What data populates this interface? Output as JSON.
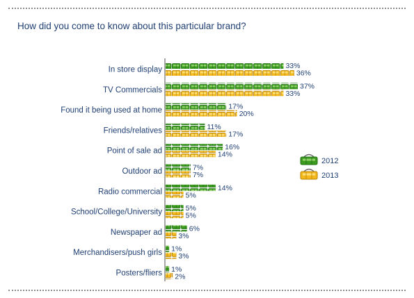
{
  "page": {
    "title": "How did you come to know about this particular brand?"
  },
  "chart_data": {
    "type": "bar",
    "orientation": "horizontal",
    "title": "How did you come to know about this particular brand?",
    "categories": [
      "In store display",
      "TV Commercials",
      "Found it being used at home",
      "Friends/relatives",
      "Point of sale ad",
      "Outdoor ad",
      "Radio  commercial",
      "School/College/University",
      "Newspaper ad",
      "Merchandisers/push girls",
      "Posters/fliers"
    ],
    "series": [
      {
        "name": "2012",
        "values": [
          33,
          37,
          17,
          11,
          16,
          7,
          14,
          5,
          6,
          1,
          1
        ],
        "color": "#3a9a1e"
      },
      {
        "name": "2013",
        "values": [
          36,
          33,
          20,
          17,
          14,
          7,
          5,
          5,
          3,
          3,
          2
        ],
        "color": "#f2b81c"
      }
    ],
    "value_suffix": "%",
    "legend_position": "right",
    "grid": false
  }
}
